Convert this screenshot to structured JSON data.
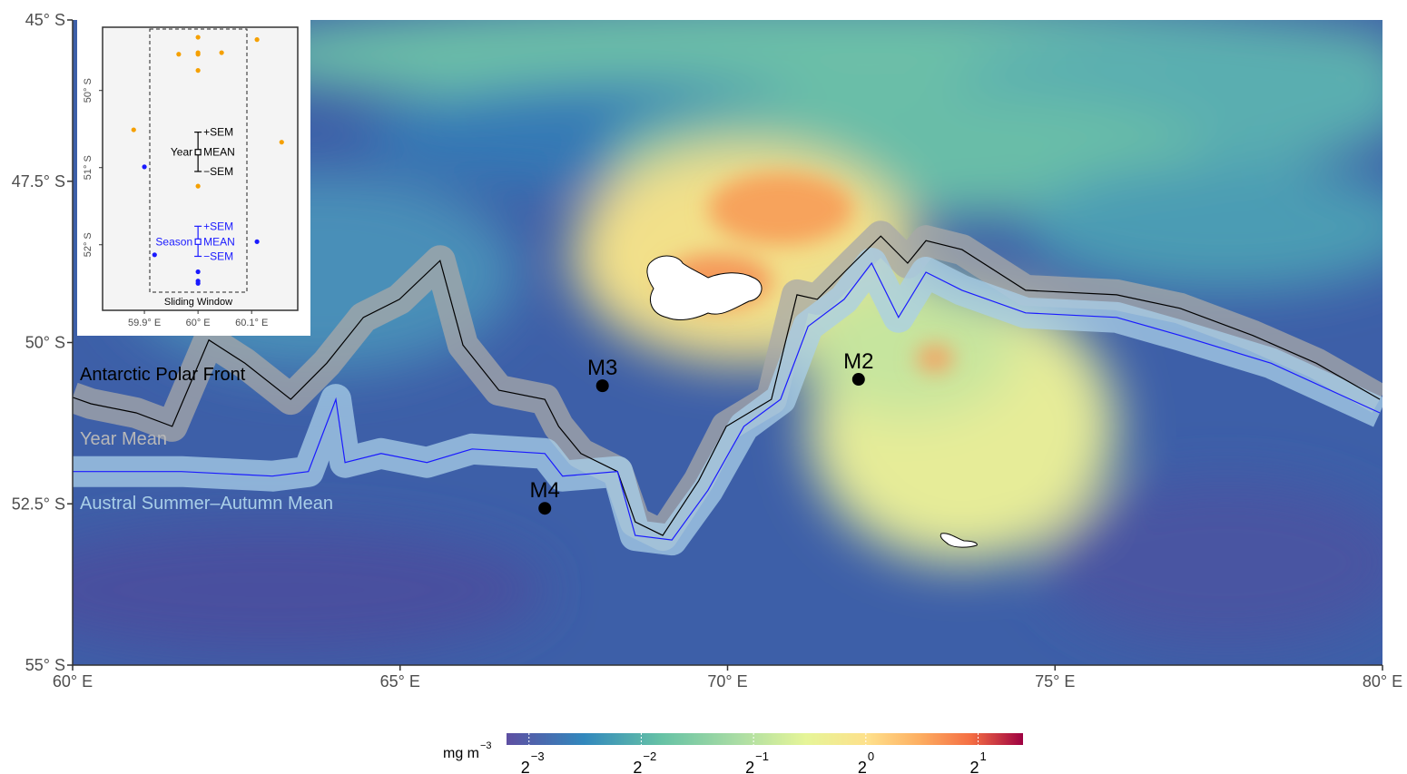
{
  "map": {
    "xlim": [
      60,
      80
    ],
    "ylim": [
      -55,
      -45
    ],
    "xticks": [
      {
        "value": 60,
        "label": "60° E"
      },
      {
        "value": 65,
        "label": "65° E"
      },
      {
        "value": 70,
        "label": "70° E"
      },
      {
        "value": 75,
        "label": "75° E"
      },
      {
        "value": 80,
        "label": "80° E"
      }
    ],
    "yticks": [
      {
        "value": -45,
        "label": "45° S"
      },
      {
        "value": -47.5,
        "label": "47.5° S"
      },
      {
        "value": -50,
        "label": "50° S"
      },
      {
        "value": -52.5,
        "label": "52.5° S"
      },
      {
        "value": -55,
        "label": "55° S"
      }
    ],
    "front_label": "Antarctic Polar Front",
    "lines": [
      {
        "name": "Year Mean",
        "color": "#000000",
        "band_color": "#a8a8a8",
        "label_color": "#b8b8b8",
        "lon": [
          60,
          60.28,
          60.97,
          61.52,
          62.08,
          62.63,
          63.33,
          63.88,
          64.44,
          64.99,
          65.61,
          65.96,
          66.51,
          67.21,
          67.42,
          67.76,
          68.32,
          68.59,
          69.01,
          69.56,
          69.98,
          70.67,
          71.06,
          71.37,
          71.92,
          72.34,
          72.75,
          73.03,
          73.58,
          74.55,
          75.94,
          76.91,
          78.02,
          78.99,
          79.96
        ],
        "lat": [
          -50.85,
          -50.95,
          -51.09,
          -51.3,
          -49.96,
          -50.32,
          -50.88,
          -50.32,
          -49.61,
          -49.33,
          -48.73,
          -50.04,
          -50.74,
          -50.88,
          -51.3,
          -51.72,
          -52.0,
          -52.78,
          -52.99,
          -52.14,
          -51.3,
          -50.88,
          -49.26,
          -49.33,
          -48.77,
          -48.35,
          -48.77,
          -48.42,
          -48.56,
          -49.19,
          -49.26,
          -49.47,
          -49.89,
          -50.32,
          -50.88
        ]
      },
      {
        "name": "Austral Summer–Autumn Mean",
        "color": "#1a1aff",
        "band_color": "#a9cfe8",
        "label_color": "#a9cfe8",
        "lon": [
          60,
          61.66,
          63.05,
          63.6,
          64.02,
          64.16,
          64.71,
          65.41,
          66.1,
          67.21,
          67.48,
          68.32,
          68.59,
          69.15,
          69.7,
          70.25,
          70.81,
          71.23,
          71.78,
          72.2,
          72.61,
          73.03,
          73.58,
          74.55,
          75.94,
          76.91,
          78.3,
          79.96
        ],
        "lat": [
          -52.0,
          -52.0,
          -52.07,
          -52.0,
          -50.88,
          -51.86,
          -51.72,
          -51.86,
          -51.65,
          -51.72,
          -52.07,
          -52.0,
          -52.99,
          -53.06,
          -52.29,
          -51.3,
          -50.88,
          -49.75,
          -49.33,
          -48.77,
          -49.61,
          -48.91,
          -49.19,
          -49.54,
          -49.61,
          -49.89,
          -50.32,
          -51.09
        ]
      }
    ],
    "stations": [
      {
        "label": "M3",
        "lon": 68.09,
        "lat": -50.67
      },
      {
        "label": "M2",
        "lon": 72.0,
        "lat": -50.57
      },
      {
        "label": "M4",
        "lon": 67.21,
        "lat": -52.57
      }
    ]
  },
  "inset": {
    "xlim": [
      59.822,
      60.186
    ],
    "ylim": [
      -52.85,
      -49.18
    ],
    "xticks": [
      {
        "value": 59.9,
        "label": "59.9° E"
      },
      {
        "value": 60,
        "label": "60° E"
      },
      {
        "value": 60.1,
        "label": "60.1° E"
      }
    ],
    "yticks": [
      {
        "value": -50,
        "label": "50° S"
      },
      {
        "value": -51,
        "label": "51° S"
      },
      {
        "value": -52,
        "label": "52° S"
      }
    ],
    "window_label": "Sliding Window",
    "groups": [
      {
        "label": "Year",
        "color": "#000000",
        "point_color": "#f5a000",
        "lon": 60,
        "mean": -50.8,
        "upper": -50.54,
        "lower": -51.05,
        "labels": [
          "+SEM",
          "MEAN",
          "−SEM"
        ],
        "points_lon": [
          59.88,
          59.964,
          60,
          60,
          60,
          60,
          60.044,
          60.11,
          60.156,
          60
        ],
        "points_lat": [
          -50.51,
          -49.53,
          -49.31,
          -49.51,
          -49.53,
          -49.74,
          -49.51,
          -49.34,
          -50.67,
          -51.24
        ]
      },
      {
        "label": "Season",
        "color": "#1a1aff",
        "point_color": "#1a1aff",
        "lon": 60,
        "mean": -51.96,
        "upper": -51.76,
        "lower": -52.15,
        "labels": [
          "+SEM",
          "MEAN",
          "−SEM"
        ],
        "points_lon": [
          59.9,
          59.919,
          60.11,
          60,
          60,
          60
        ],
        "points_lat": [
          -50.99,
          -52.13,
          -51.96,
          -52.35,
          -52.47,
          -52.5
        ]
      }
    ]
  },
  "colorbar": {
    "unit_base": "mg m",
    "unit_exponent": "−3",
    "lim": [
      -3.2,
      1.4
    ],
    "ticks": [
      {
        "value": -3,
        "base": "2",
        "exponent": "−3"
      },
      {
        "value": -2,
        "base": "2",
        "exponent": "−2"
      },
      {
        "value": -1,
        "base": "2",
        "exponent": "−1"
      },
      {
        "value": 0,
        "base": "2",
        "exponent": "0"
      },
      {
        "value": 1,
        "base": "2",
        "exponent": "1"
      }
    ]
  }
}
